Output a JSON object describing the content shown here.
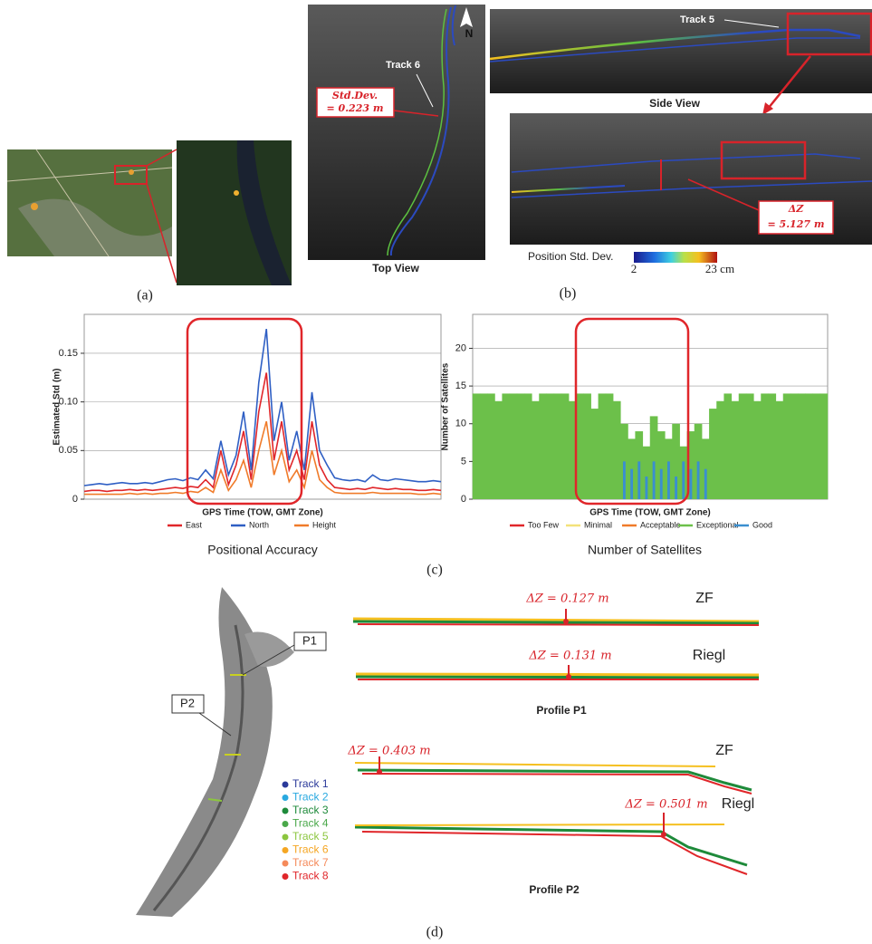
{
  "panels": {
    "a": {
      "label": "(a)"
    },
    "b": {
      "label": "(b)",
      "top_view": {
        "title": "Top View",
        "track": "Track 6",
        "north": "N",
        "std_dev_label": "Std.Dev.",
        "std_dev_value": "= 0.223 m"
      },
      "side_view": {
        "title": "Side View",
        "track": "Track 5"
      },
      "detail": {
        "dz_label": "ΔZ",
        "dz_value": "= 5.127 m"
      },
      "colorbar": {
        "title": "Position Std. Dev.",
        "min": "2",
        "max": "23 cm"
      }
    },
    "c": {
      "label": "(c)",
      "captions": [
        "Positional Accuracy",
        "Number of Satellites"
      ]
    },
    "d": {
      "label": "(d)",
      "callouts": [
        "P1",
        "P2"
      ],
      "tracks": [
        {
          "name": "Track 1",
          "color": "#2b3a9a"
        },
        {
          "name": "Track 2",
          "color": "#29a9e0"
        },
        {
          "name": "Track 3",
          "color": "#1e8a3a"
        },
        {
          "name": "Track 4",
          "color": "#4aa84a"
        },
        {
          "name": "Track 5",
          "color": "#8cc63f"
        },
        {
          "name": "Track 6",
          "color": "#f5a623"
        },
        {
          "name": "Track 7",
          "color": "#f58a5a"
        },
        {
          "name": "Track 8",
          "color": "#e0262a"
        }
      ],
      "profiles": [
        {
          "title": "Profile P1",
          "rows": [
            {
              "sensor": "ZF",
              "dz": "ΔZ = 0.127 m"
            },
            {
              "sensor": "Riegl",
              "dz": "ΔZ = 0.131 m"
            }
          ]
        },
        {
          "title": "Profile P2",
          "rows": [
            {
              "sensor": "ZF",
              "dz": "ΔZ = 0.403 m"
            },
            {
              "sensor": "Riegl",
              "dz": "ΔZ = 0.501 m"
            }
          ]
        }
      ]
    }
  },
  "chart_data": [
    {
      "type": "line",
      "x_label": "GPS Time (TOW, GMT Zone)",
      "y_label": "Estimated Std (m)",
      "ylim": [
        0,
        0.19
      ],
      "yticks": [
        0,
        0.05,
        {
          "value": 0.1,
          "label": "0.10"
        },
        0.15
      ],
      "grid": true,
      "series": [
        {
          "name": "East",
          "color": "#e0262a",
          "values": [
            0.008,
            0.009,
            0.009,
            0.008,
            0.009,
            0.009,
            0.01,
            0.009,
            0.01,
            0.009,
            0.01,
            0.011,
            0.012,
            0.011,
            0.013,
            0.012,
            0.02,
            0.012,
            0.05,
            0.015,
            0.035,
            0.07,
            0.02,
            0.09,
            0.13,
            0.04,
            0.08,
            0.03,
            0.05,
            0.02,
            0.08,
            0.035,
            0.02,
            0.012,
            0.011,
            0.01,
            0.011,
            0.01,
            0.012,
            0.011,
            0.01,
            0.011,
            0.01,
            0.01,
            0.009,
            0.009,
            0.01,
            0.009
          ]
        },
        {
          "name": "North",
          "color": "#2f5fc4",
          "values": [
            0.014,
            0.015,
            0.016,
            0.015,
            0.016,
            0.017,
            0.016,
            0.016,
            0.017,
            0.016,
            0.018,
            0.02,
            0.021,
            0.019,
            0.022,
            0.02,
            0.03,
            0.021,
            0.06,
            0.025,
            0.045,
            0.09,
            0.03,
            0.12,
            0.175,
            0.06,
            0.1,
            0.04,
            0.07,
            0.03,
            0.11,
            0.05,
            0.035,
            0.022,
            0.02,
            0.019,
            0.02,
            0.018,
            0.025,
            0.02,
            0.019,
            0.021,
            0.02,
            0.019,
            0.018,
            0.018,
            0.019,
            0.018
          ]
        },
        {
          "name": "Height",
          "color": "#f07b2a",
          "values": [
            0.005,
            0.005,
            0.005,
            0.005,
            0.005,
            0.005,
            0.006,
            0.005,
            0.006,
            0.005,
            0.006,
            0.006,
            0.007,
            0.006,
            0.008,
            0.007,
            0.012,
            0.007,
            0.03,
            0.009,
            0.02,
            0.04,
            0.012,
            0.05,
            0.08,
            0.025,
            0.05,
            0.018,
            0.03,
            0.012,
            0.05,
            0.02,
            0.012,
            0.007,
            0.006,
            0.006,
            0.006,
            0.006,
            0.007,
            0.006,
            0.006,
            0.006,
            0.006,
            0.006,
            0.005,
            0.005,
            0.006,
            0.005
          ]
        }
      ]
    },
    {
      "type": "bar",
      "x_label": "GPS Time (TOW, GMT Zone)",
      "y_label": "Number of  Satellites",
      "ylim": [
        0,
        24.5
      ],
      "yticks": [
        0,
        5,
        10,
        15,
        20
      ],
      "grid": true,
      "series": [
        {
          "name": "Too Few",
          "color": "#e0262a",
          "values": [
            null,
            null,
            null,
            null,
            null,
            null,
            null,
            null,
            null,
            null,
            null,
            null,
            null,
            null,
            null,
            null,
            null,
            null,
            null,
            null,
            null,
            null,
            null,
            null,
            null,
            null,
            null,
            null,
            null,
            null,
            null,
            null,
            null,
            null,
            null,
            null,
            null,
            null,
            null,
            null,
            null,
            null,
            null,
            null,
            null,
            null,
            null,
            null
          ]
        },
        {
          "name": "Minimal",
          "color": "#f3e27a",
          "values": [
            null,
            null,
            null,
            null,
            null,
            null,
            null,
            null,
            null,
            null,
            null,
            null,
            null,
            null,
            null,
            null,
            null,
            null,
            null,
            null,
            null,
            null,
            null,
            null,
            null,
            null,
            null,
            null,
            null,
            null,
            null,
            null,
            null,
            null,
            null,
            null,
            null,
            null,
            null,
            null,
            null,
            null,
            null,
            null,
            null,
            null,
            null,
            null
          ]
        },
        {
          "name": "Acceptable",
          "color": "#f07b2a",
          "values": [
            null,
            null,
            null,
            null,
            null,
            null,
            null,
            null,
            null,
            null,
            null,
            null,
            null,
            null,
            null,
            null,
            null,
            null,
            null,
            null,
            null,
            null,
            null,
            null,
            null,
            null,
            null,
            null,
            null,
            null,
            null,
            null,
            null,
            null,
            null,
            null,
            null,
            null,
            null,
            null,
            null,
            null,
            null,
            null,
            null,
            null,
            null,
            null
          ]
        },
        {
          "name": "Exceptional",
          "color": "#6cc04a",
          "values": [
            14,
            14,
            14,
            13,
            14,
            14,
            14,
            14,
            13,
            14,
            14,
            14,
            14,
            13,
            14,
            14,
            12,
            14,
            14,
            13,
            10,
            8,
            9,
            7,
            11,
            9,
            8,
            10,
            7,
            9,
            10,
            8,
            12,
            13,
            14,
            13,
            14,
            14,
            13,
            14,
            14,
            13,
            14,
            14,
            14,
            14,
            14,
            14
          ]
        },
        {
          "name": "Good",
          "color": "#3a8fd0",
          "values": [
            null,
            null,
            null,
            null,
            null,
            null,
            null,
            null,
            null,
            null,
            null,
            null,
            null,
            null,
            null,
            null,
            null,
            null,
            null,
            null,
            5,
            4,
            5,
            3,
            5,
            4,
            5,
            3,
            5,
            4,
            5,
            4,
            null,
            null,
            null,
            null,
            null,
            null,
            null,
            null,
            null,
            null,
            null,
            null,
            null,
            null,
            null,
            null
          ]
        }
      ]
    }
  ]
}
